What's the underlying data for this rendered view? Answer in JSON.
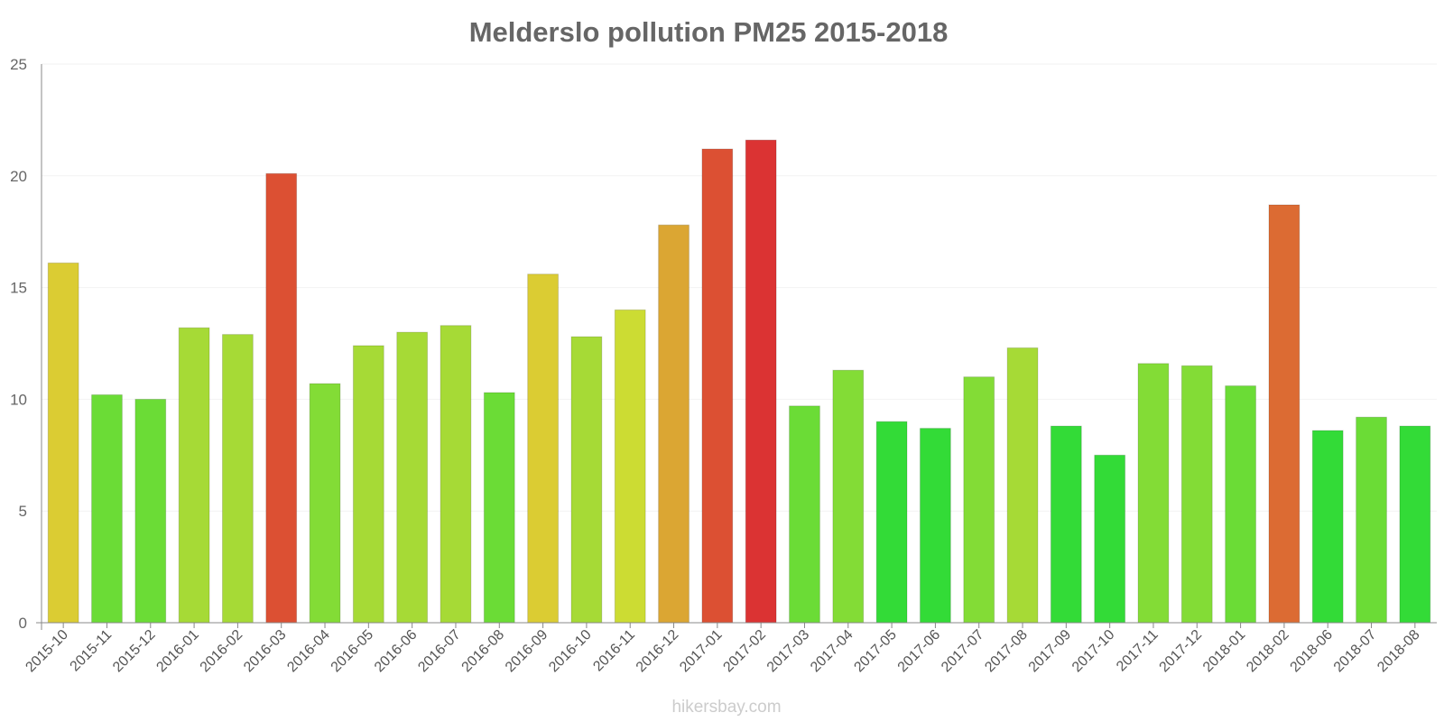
{
  "chart_data": {
    "type": "bar",
    "title": "Melderslo pollution PM25 2015-2018",
    "xlabel": "",
    "ylabel": "",
    "ylim": [
      0,
      25
    ],
    "yticks": [
      0,
      5,
      10,
      15,
      20,
      25
    ],
    "categories": [
      "2015-10",
      "2015-11",
      "2015-12",
      "2016-01",
      "2016-02",
      "2016-03",
      "2016-04",
      "2016-05",
      "2016-06",
      "2016-07",
      "2016-08",
      "2016-09",
      "2016-10",
      "2016-11",
      "2016-12",
      "2017-01",
      "2017-02",
      "2017-03",
      "2017-04",
      "2017-05",
      "2017-06",
      "2017-07",
      "2017-08",
      "2017-09",
      "2017-10",
      "2017-11",
      "2017-12",
      "2018-01",
      "2018-02",
      "2018-06",
      "2018-07",
      "2018-08"
    ],
    "values": [
      16.1,
      10.2,
      10.0,
      13.2,
      12.9,
      20.1,
      10.7,
      12.4,
      13.0,
      13.3,
      10.3,
      15.6,
      12.8,
      14.0,
      17.8,
      21.2,
      21.6,
      9.7,
      11.3,
      9.0,
      8.7,
      11.0,
      12.3,
      8.8,
      7.5,
      11.6,
      11.5,
      10.6,
      18.7,
      8.6,
      9.2,
      8.8
    ],
    "colors": [
      "#dbcc33",
      "#6bdc36",
      "#6bdc36",
      "#a6da36",
      "#a6da36",
      "#dc5033",
      "#83dc36",
      "#a6da36",
      "#a6da36",
      "#a6da36",
      "#6bdc36",
      "#dbcc33",
      "#a6da36",
      "#ccdc33",
      "#dba633",
      "#dc5033",
      "#db3333",
      "#6bdc36",
      "#83dc36",
      "#33db37",
      "#33db37",
      "#83dc36",
      "#a6da36",
      "#33db37",
      "#33db37",
      "#83dc36",
      "#83dc36",
      "#6bdc36",
      "#dc6b33",
      "#33db37",
      "#6bdc36",
      "#33db37"
    ],
    "watermark": "hikersbay.com"
  }
}
